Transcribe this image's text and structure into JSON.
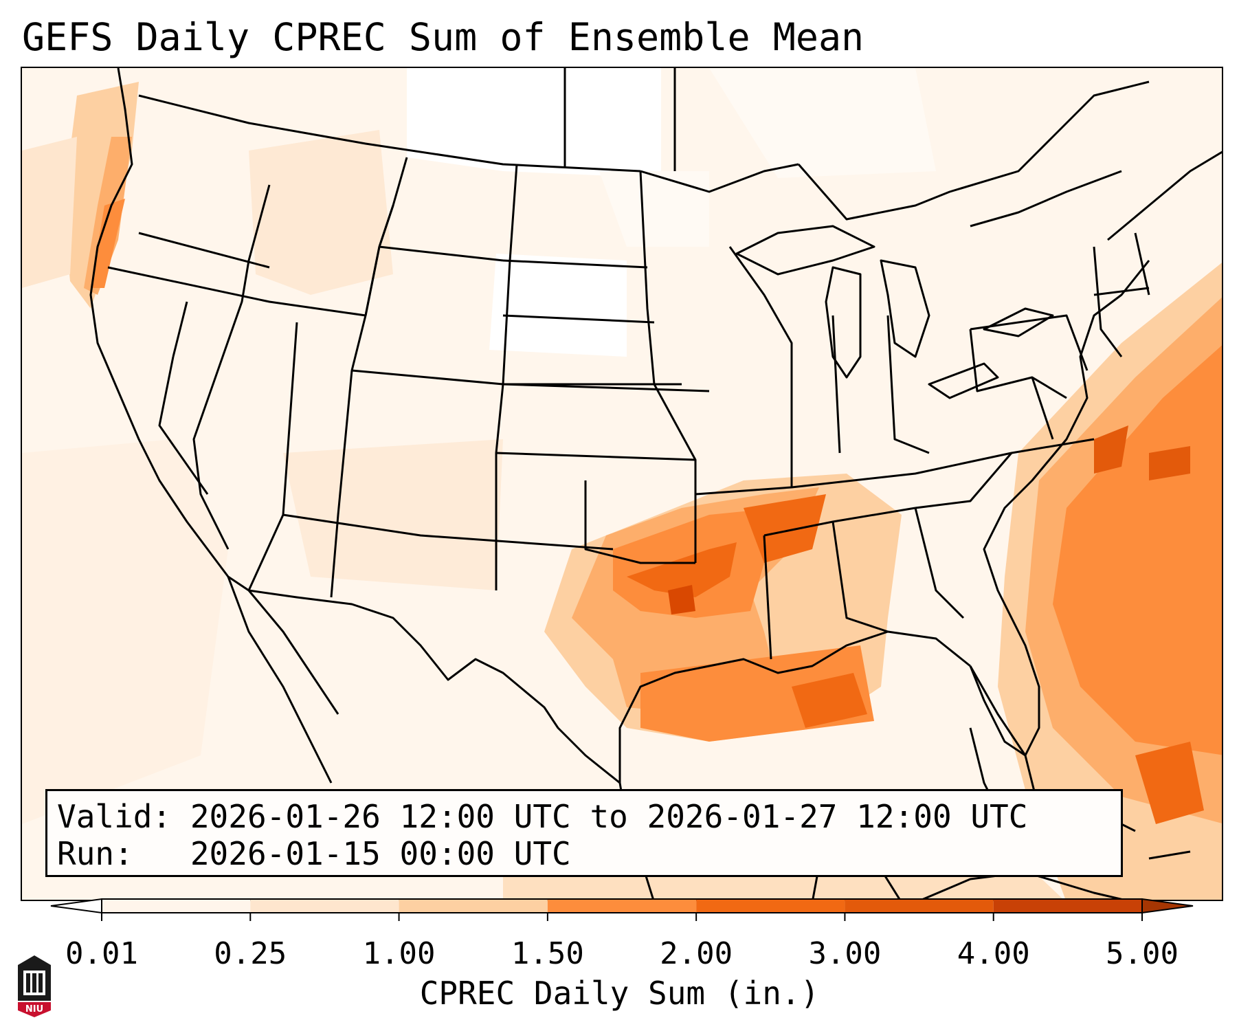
{
  "title": "GEFS Daily CPREC Sum of Ensemble Mean",
  "info": {
    "valid_line": "Valid: 2026-01-26 12:00 UTC to 2026-01-27 12:00 UTC",
    "run_line": "Run:   2026-01-15 00:00 UTC"
  },
  "colorbar": {
    "label": "CPREC Daily Sum (in.)",
    "ticks": [
      "0.01",
      "0.25",
      "1.00",
      "1.50",
      "2.00",
      "3.00",
      "4.00",
      "5.00"
    ],
    "colors": [
      "#fff5eb",
      "#fee6ce",
      "#fdd0a2",
      "#fd8d3c",
      "#f16913",
      "#e35a0b",
      "#c84106"
    ],
    "under_color": "#ffffff",
    "over_color": "#a63603"
  },
  "logo": {
    "text": "NIU",
    "color": "#c8102e"
  }
}
